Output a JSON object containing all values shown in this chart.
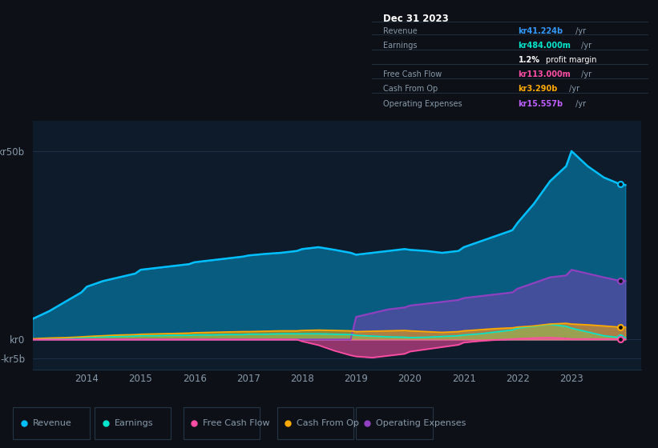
{
  "bg_color": "#0d1117",
  "plot_bg_color": "#0d1b2a",
  "grid_color": "#1e3048",
  "text_color": "#8899aa",
  "years": [
    2013.0,
    2013.3,
    2013.6,
    2013.9,
    2014.0,
    2014.3,
    2014.6,
    2014.9,
    2015.0,
    2015.3,
    2015.6,
    2015.9,
    2016.0,
    2016.3,
    2016.6,
    2016.9,
    2017.0,
    2017.3,
    2017.6,
    2017.9,
    2018.0,
    2018.3,
    2018.6,
    2018.9,
    2019.0,
    2019.3,
    2019.6,
    2019.9,
    2020.0,
    2020.3,
    2020.6,
    2020.9,
    2021.0,
    2021.3,
    2021.6,
    2021.9,
    2022.0,
    2022.3,
    2022.6,
    2022.9,
    2023.0,
    2023.3,
    2023.6,
    2023.9,
    2024.0
  ],
  "revenue": [
    5.5,
    7.5,
    10.0,
    12.5,
    14.0,
    15.5,
    16.5,
    17.5,
    18.5,
    19.0,
    19.5,
    20.0,
    20.5,
    21.0,
    21.5,
    22.0,
    22.3,
    22.7,
    23.0,
    23.5,
    24.0,
    24.5,
    23.8,
    23.0,
    22.5,
    23.0,
    23.5,
    24.0,
    23.8,
    23.5,
    23.0,
    23.5,
    24.5,
    26.0,
    27.5,
    29.0,
    31.0,
    36.0,
    42.0,
    46.0,
    50.0,
    46.0,
    43.0,
    41.224,
    41.0
  ],
  "earnings": [
    0.1,
    0.2,
    0.3,
    0.5,
    0.6,
    0.7,
    0.8,
    0.9,
    1.0,
    1.0,
    1.1,
    1.1,
    1.2,
    1.2,
    1.3,
    1.3,
    1.4,
    1.4,
    1.5,
    1.5,
    1.5,
    1.5,
    1.4,
    1.3,
    1.1,
    0.9,
    0.7,
    0.6,
    0.5,
    0.6,
    0.8,
    1.0,
    1.2,
    1.5,
    2.0,
    2.5,
    3.0,
    3.5,
    4.0,
    3.5,
    3.0,
    2.0,
    1.0,
    0.484,
    0.484
  ],
  "free_cash_flow": [
    0.0,
    0.0,
    0.0,
    0.0,
    0.0,
    0.0,
    0.0,
    0.0,
    0.0,
    0.0,
    0.0,
    0.0,
    0.0,
    0.0,
    0.0,
    0.0,
    0.0,
    0.0,
    0.0,
    0.0,
    -0.5,
    -1.5,
    -3.0,
    -4.2,
    -4.5,
    -4.8,
    -4.3,
    -3.8,
    -3.2,
    -2.6,
    -2.0,
    -1.4,
    -0.8,
    -0.4,
    -0.1,
    0.1,
    0.2,
    0.4,
    0.5,
    0.3,
    0.15,
    0.15,
    0.113,
    0.113,
    0.113
  ],
  "cash_from_op": [
    0.2,
    0.4,
    0.5,
    0.7,
    0.8,
    1.0,
    1.2,
    1.3,
    1.4,
    1.5,
    1.6,
    1.7,
    1.8,
    1.9,
    2.0,
    2.1,
    2.1,
    2.2,
    2.3,
    2.3,
    2.4,
    2.5,
    2.4,
    2.3,
    2.1,
    2.2,
    2.3,
    2.4,
    2.3,
    2.1,
    1.9,
    2.1,
    2.3,
    2.6,
    2.9,
    3.1,
    3.3,
    3.6,
    4.1,
    4.3,
    4.1,
    3.9,
    3.6,
    3.29,
    3.29
  ],
  "operating_expenses": [
    0.0,
    0.0,
    0.0,
    0.0,
    0.0,
    0.0,
    0.0,
    0.0,
    0.0,
    0.0,
    0.0,
    0.0,
    0.0,
    0.0,
    0.0,
    0.0,
    0.0,
    0.0,
    0.0,
    0.0,
    0.0,
    0.0,
    0.0,
    0.0,
    6.0,
    7.0,
    8.0,
    8.5,
    9.0,
    9.5,
    10.0,
    10.5,
    11.0,
    11.5,
    12.0,
    12.5,
    13.5,
    15.0,
    16.5,
    17.0,
    18.5,
    17.5,
    16.5,
    15.557,
    15.557
  ],
  "revenue_color": "#00bfff",
  "earnings_color": "#00e5cc",
  "fcf_color": "#ff4da6",
  "cashop_color": "#ffaa00",
  "opex_color": "#9040c0",
  "ytick_labels": [
    "kr50b",
    "kr0",
    "-kr5b"
  ],
  "ytick_values": [
    50,
    0,
    -5
  ],
  "ylim": [
    -8,
    58
  ],
  "xlim": [
    2013.0,
    2024.3
  ],
  "info_box": {
    "date": "Dec 31 2023",
    "rows": [
      {
        "label": "Revenue",
        "value": "kr41.224b",
        "suffix": " /yr",
        "value_color": "#3399ff"
      },
      {
        "label": "Earnings",
        "value": "kr484.000m",
        "suffix": " /yr",
        "value_color": "#00e5cc"
      },
      {
        "label": "",
        "value": "1.2%",
        "suffix": " profit margin",
        "value_color": "#ffffff"
      },
      {
        "label": "Free Cash Flow",
        "value": "kr113.000m",
        "suffix": " /yr",
        "value_color": "#ff4da6"
      },
      {
        "label": "Cash From Op",
        "value": "kr3.290b",
        "suffix": " /yr",
        "value_color": "#ffaa00"
      },
      {
        "label": "Operating Expenses",
        "value": "kr15.557b",
        "suffix": " /yr",
        "value_color": "#bf5fff"
      }
    ]
  },
  "legend_items": [
    {
      "label": "Revenue",
      "color": "#00bfff"
    },
    {
      "label": "Earnings",
      "color": "#00e5cc"
    },
    {
      "label": "Free Cash Flow",
      "color": "#ff4da6"
    },
    {
      "label": "Cash From Op",
      "color": "#ffaa00"
    },
    {
      "label": "Operating Expenses",
      "color": "#9040c0"
    }
  ]
}
